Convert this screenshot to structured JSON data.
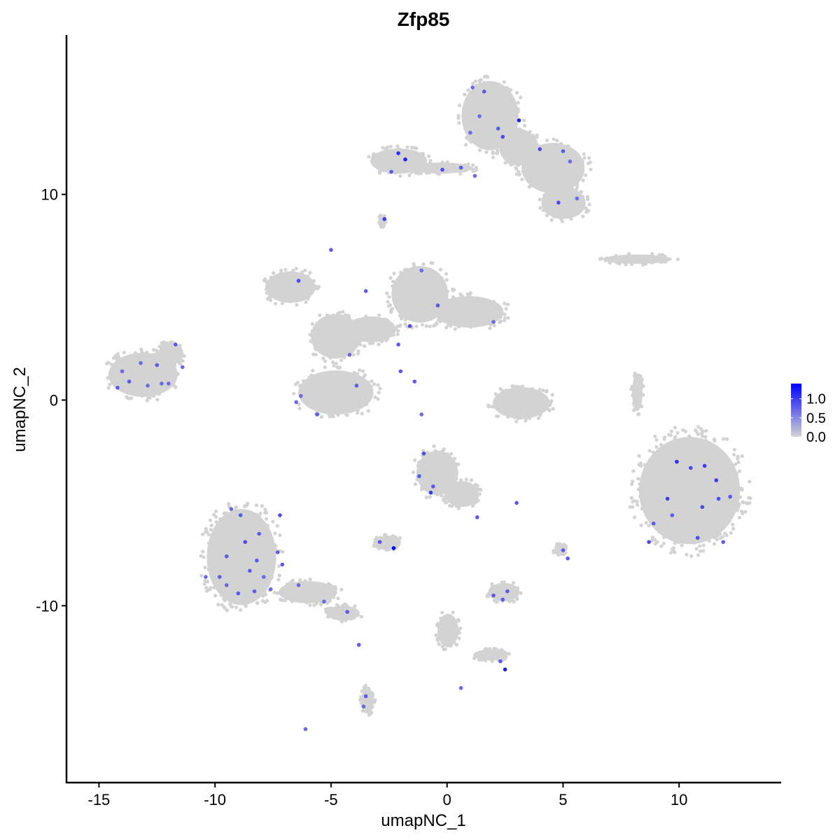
{
  "chart_data": {
    "type": "scatter",
    "title": "Zfp85",
    "xlabel": "umapNC_1",
    "ylabel": "umapNC_2",
    "xlim": [
      -16.4,
      14.4
    ],
    "ylim": [
      -18.6,
      17.75
    ],
    "xticks": [
      -15,
      -10,
      -5,
      0,
      5,
      10
    ],
    "xtick_labels": [
      "-15",
      "-10",
      "-5",
      "0",
      "5",
      "10"
    ],
    "yticks": [
      -10,
      0,
      10
    ],
    "ytick_labels": [
      "-10",
      "0",
      "10"
    ],
    "grid": false,
    "color_low": "#D3D3D3",
    "color_high": "#0000FF",
    "legend": {
      "placement": "right",
      "range": [
        0,
        1.4
      ],
      "ticks": [
        1.0,
        0.5,
        0.0
      ],
      "tick_labels": [
        "1.0",
        "0.5",
        "0.0"
      ]
    },
    "background_clusters": [
      [
        1.85,
        13.83,
        1.36,
        1.87
      ],
      [
        4.57,
        11.28,
        1.51,
        1.36
      ],
      [
        5.02,
        9.57,
        1.06,
        0.85
      ],
      [
        3.06,
        12.3,
        0.9,
        1.0
      ],
      [
        -2.08,
        11.62,
        1.36,
        0.68
      ],
      [
        -0.27,
        11.28,
        1.5,
        0.3
      ],
      [
        -13.1,
        1.23,
        1.66,
        1.19
      ],
      [
        -11.9,
        2.25,
        0.6,
        0.6
      ],
      [
        -6.75,
        5.49,
        1.2,
        0.85
      ],
      [
        -4.79,
        3.1,
        1.2,
        1.2
      ],
      [
        -1.17,
        5.14,
        1.36,
        1.53
      ],
      [
        0.94,
        4.29,
        1.66,
        0.85
      ],
      [
        -4.79,
        0.37,
        1.8,
        1.19
      ],
      [
        -3.28,
        3.44,
        1.2,
        0.7
      ],
      [
        3.2,
        -0.14,
        1.36,
        0.85
      ],
      [
        10.45,
        -4.4,
        2.42,
        2.9
      ],
      [
        -8.86,
        -7.63,
        1.66,
        2.6
      ],
      [
        -6.0,
        -9.34,
        1.4,
        0.6
      ],
      [
        -4.49,
        -10.36,
        0.8,
        0.4
      ],
      [
        -3.43,
        -14.62,
        0.3,
        0.7
      ],
      [
        -0.42,
        -3.54,
        1.0,
        1.2
      ],
      [
        0.64,
        -4.57,
        0.8,
        0.7
      ],
      [
        -2.53,
        -6.95,
        0.6,
        0.4
      ],
      [
        2.45,
        -9.34,
        0.75,
        0.5
      ],
      [
        8.2,
        6.85,
        1.66,
        0.25
      ],
      [
        0.04,
        -11.2,
        0.5,
        0.9
      ],
      [
        1.85,
        -12.4,
        0.8,
        0.3
      ],
      [
        4.87,
        -7.3,
        0.3,
        0.3
      ],
      [
        -2.8,
        8.7,
        0.15,
        0.3
      ],
      [
        8.2,
        0.37,
        0.25,
        1.0
      ]
    ],
    "expressed_points": [
      [
        1.1,
        15.2,
        0.7
      ],
      [
        1.6,
        15.0,
        0.8
      ],
      [
        1.4,
        13.8,
        0.7
      ],
      [
        2.2,
        13.2,
        0.8
      ],
      [
        2.4,
        12.8,
        0.9
      ],
      [
        3.1,
        13.6,
        1.2
      ],
      [
        4.0,
        12.2,
        0.9
      ],
      [
        5.0,
        12.1,
        0.8
      ],
      [
        5.3,
        11.6,
        0.7
      ],
      [
        4.8,
        9.6,
        0.9
      ],
      [
        5.6,
        9.8,
        0.7
      ],
      [
        1.0,
        13.0,
        0.7
      ],
      [
        -2.1,
        12.0,
        1.1
      ],
      [
        -1.8,
        11.7,
        1.2
      ],
      [
        -2.4,
        11.1,
        0.8
      ],
      [
        -0.2,
        11.2,
        0.9
      ],
      [
        0.6,
        11.3,
        0.8
      ],
      [
        1.2,
        10.9,
        0.7
      ],
      [
        -2.7,
        8.8,
        1.0
      ],
      [
        -14.0,
        1.4,
        0.7
      ],
      [
        -13.7,
        0.9,
        0.8
      ],
      [
        -13.2,
        1.8,
        0.7
      ],
      [
        -12.5,
        1.7,
        0.8
      ],
      [
        -12.3,
        0.8,
        0.7
      ],
      [
        -12.9,
        0.7,
        0.7
      ],
      [
        -11.7,
        2.7,
        0.8
      ],
      [
        -11.4,
        1.6,
        0.7
      ],
      [
        -14.2,
        0.6,
        0.8
      ],
      [
        -12.0,
        0.8,
        0.7
      ],
      [
        -6.4,
        5.8,
        0.9
      ],
      [
        -5.0,
        7.3,
        0.8
      ],
      [
        -3.5,
        5.3,
        0.8
      ],
      [
        -1.1,
        6.3,
        0.7
      ],
      [
        -0.4,
        4.6,
        0.8
      ],
      [
        2.0,
        3.8,
        0.7
      ],
      [
        -1.6,
        3.6,
        0.9
      ],
      [
        -2.1,
        2.7,
        0.8
      ],
      [
        -4.2,
        2.2,
        0.7
      ],
      [
        -2.0,
        1.4,
        0.8
      ],
      [
        -1.4,
        0.9,
        0.8
      ],
      [
        -3.9,
        0.7,
        0.8
      ],
      [
        -6.3,
        0.2,
        0.7
      ],
      [
        -5.6,
        -0.7,
        0.8
      ],
      [
        -6.5,
        -0.1,
        0.7
      ],
      [
        9.9,
        -3.0,
        1.1
      ],
      [
        10.5,
        -3.3,
        0.9
      ],
      [
        11.1,
        -3.2,
        1.0
      ],
      [
        11.0,
        -5.2,
        0.9
      ],
      [
        11.6,
        -3.9,
        1.0
      ],
      [
        11.7,
        -4.8,
        0.9
      ],
      [
        9.5,
        -4.8,
        1.0
      ],
      [
        8.9,
        -6.0,
        0.8
      ],
      [
        10.8,
        -6.7,
        0.9
      ],
      [
        11.9,
        -6.9,
        0.8
      ],
      [
        8.7,
        -6.9,
        0.9
      ],
      [
        9.7,
        -5.6,
        0.8
      ],
      [
        12.2,
        -4.7,
        0.8
      ],
      [
        -8.9,
        -5.6,
        0.8
      ],
      [
        -8.1,
        -6.5,
        0.8
      ],
      [
        -8.7,
        -6.9,
        0.9
      ],
      [
        -9.5,
        -7.6,
        0.8
      ],
      [
        -8.2,
        -7.8,
        0.8
      ],
      [
        -7.9,
        -8.6,
        0.7
      ],
      [
        -8.5,
        -8.3,
        0.8
      ],
      [
        -9.8,
        -8.6,
        0.8
      ],
      [
        -9.0,
        -9.4,
        0.8
      ],
      [
        -7.3,
        -7.4,
        0.8
      ],
      [
        -7.6,
        -9.2,
        0.7
      ],
      [
        -8.3,
        -9.3,
        0.8
      ],
      [
        -9.5,
        -9.0,
        0.7
      ],
      [
        -10.4,
        -8.6,
        0.7
      ],
      [
        -7.1,
        -8.0,
        0.8
      ],
      [
        -6.4,
        -9.0,
        0.7
      ],
      [
        -5.3,
        -9.8,
        0.7
      ],
      [
        -4.3,
        -10.3,
        0.8
      ],
      [
        -3.8,
        -11.9,
        0.8
      ],
      [
        -3.5,
        -14.4,
        0.8
      ],
      [
        -3.6,
        -14.9,
        0.7
      ],
      [
        -7.2,
        -5.6,
        0.9
      ],
      [
        -9.3,
        -5.3,
        0.7
      ],
      [
        -6.1,
        -16.0,
        0.7
      ],
      [
        -1.0,
        -2.6,
        0.9
      ],
      [
        -1.2,
        -3.7,
        0.8
      ],
      [
        -0.6,
        -4.2,
        0.8
      ],
      [
        -0.7,
        -4.5,
        1.0
      ],
      [
        1.3,
        -5.7,
        0.8
      ],
      [
        -2.9,
        -6.9,
        0.8
      ],
      [
        -2.3,
        -7.2,
        1.4
      ],
      [
        2.0,
        -9.5,
        0.8
      ],
      [
        2.4,
        -9.7,
        0.8
      ],
      [
        2.6,
        -9.3,
        0.8
      ],
      [
        2.3,
        -12.7,
        0.8
      ],
      [
        2.5,
        -13.1,
        1.2
      ],
      [
        0.6,
        -14.0,
        0.7
      ],
      [
        3.0,
        -5.0,
        0.8
      ],
      [
        5.0,
        -7.3,
        0.8
      ],
      [
        5.2,
        -7.7,
        0.8
      ],
      [
        -1.1,
        -0.7,
        0.7
      ]
    ]
  }
}
